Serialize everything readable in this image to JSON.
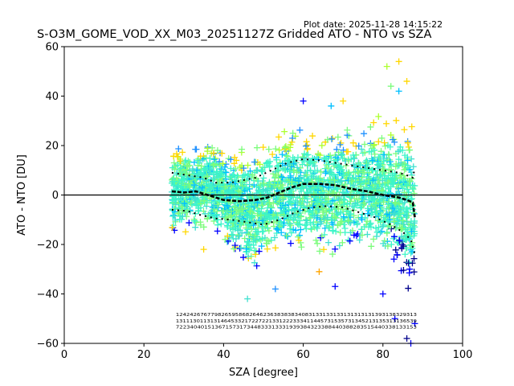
{
  "header": {
    "plot_date": "Plot date: 2025-11-28 14:15:22",
    "title": "S-O3M_GOME_VOD_XX_M03_20251127Z Gridded ATO - NTO vs SZA"
  },
  "colors": {
    "background": "#ffffff",
    "axis": "#000000",
    "scatter_palette": [
      "#00008b",
      "#0000ff",
      "#1e90ff",
      "#00bfff",
      "#40e0d0",
      "#3cf5c8",
      "#7cfc7c",
      "#adff2f",
      "#ffd700",
      "#ffa500"
    ]
  },
  "chart_data": {
    "type": "scatter",
    "title": "S-O3M_GOME_VOD_XX_M03_20251127Z Gridded ATO - NTO vs SZA",
    "xlabel": "SZA [degree]",
    "ylabel": "ATO - NTO [DU]",
    "xlim": [
      0,
      100
    ],
    "ylim": [
      -60,
      60
    ],
    "xticks": [
      0,
      20,
      40,
      60,
      80,
      100
    ],
    "yticks": [
      -60,
      -40,
      -20,
      0,
      20,
      40,
      60
    ],
    "grid": false,
    "marker": "+",
    "x_range": [
      27,
      88
    ],
    "zero_line": 0,
    "cloud_upper": [
      {
        "x": 27,
        "y": 22
      },
      {
        "x": 32,
        "y": 24
      },
      {
        "x": 36,
        "y": 26
      },
      {
        "x": 40,
        "y": 22
      },
      {
        "x": 44,
        "y": 20
      },
      {
        "x": 48,
        "y": 24
      },
      {
        "x": 52,
        "y": 28
      },
      {
        "x": 56,
        "y": 30
      },
      {
        "x": 60,
        "y": 30
      },
      {
        "x": 64,
        "y": 28
      },
      {
        "x": 68,
        "y": 30
      },
      {
        "x": 72,
        "y": 30
      },
      {
        "x": 76,
        "y": 32
      },
      {
        "x": 80,
        "y": 34
      },
      {
        "x": 84,
        "y": 36
      },
      {
        "x": 87,
        "y": 38
      },
      {
        "x": 88,
        "y": 30
      }
    ],
    "cloud_lower": [
      {
        "x": 27,
        "y": -20
      },
      {
        "x": 32,
        "y": -18
      },
      {
        "x": 36,
        "y": -20
      },
      {
        "x": 40,
        "y": -22
      },
      {
        "x": 44,
        "y": -30
      },
      {
        "x": 46,
        "y": -36
      },
      {
        "x": 50,
        "y": -32
      },
      {
        "x": 54,
        "y": -28
      },
      {
        "x": 58,
        "y": -28
      },
      {
        "x": 62,
        "y": -26
      },
      {
        "x": 66,
        "y": -28
      },
      {
        "x": 70,
        "y": -28
      },
      {
        "x": 74,
        "y": -24
      },
      {
        "x": 78,
        "y": -26
      },
      {
        "x": 82,
        "y": -32
      },
      {
        "x": 85,
        "y": -42
      },
      {
        "x": 87,
        "y": -55
      },
      {
        "x": 88,
        "y": -45
      }
    ],
    "outliers": [
      {
        "x": 60,
        "y": 38,
        "c": "#0000ff"
      },
      {
        "x": 70,
        "y": 38,
        "c": "#ffd700"
      },
      {
        "x": 81,
        "y": 52,
        "c": "#adff2f"
      },
      {
        "x": 84,
        "y": 54,
        "c": "#ffd700"
      },
      {
        "x": 86,
        "y": 46,
        "c": "#ffd700"
      },
      {
        "x": 82,
        "y": 44,
        "c": "#7cfc7c"
      },
      {
        "x": 84,
        "y": 42,
        "c": "#00bfff"
      },
      {
        "x": 67,
        "y": 36,
        "c": "#00bfff"
      },
      {
        "x": 46,
        "y": -42,
        "c": "#40e0d0"
      },
      {
        "x": 53,
        "y": -38,
        "c": "#1e90ff"
      },
      {
        "x": 68,
        "y": -37,
        "c": "#0000ff"
      },
      {
        "x": 83,
        "y": -50,
        "c": "#0000ff"
      },
      {
        "x": 86,
        "y": -58,
        "c": "#00008b"
      },
      {
        "x": 87,
        "y": -60,
        "c": "#0000ff"
      },
      {
        "x": 88,
        "y": -52,
        "c": "#0000ff"
      },
      {
        "x": 80,
        "y": -40,
        "c": "#0000ff"
      },
      {
        "x": 64,
        "y": -31,
        "c": "#ffa500"
      },
      {
        "x": 35,
        "y": -22,
        "c": "#ffd700"
      }
    ],
    "mean_line": [
      {
        "x": 27,
        "y": 1.5
      },
      {
        "x": 30,
        "y": 1
      },
      {
        "x": 33,
        "y": 1.5
      },
      {
        "x": 36,
        "y": 0
      },
      {
        "x": 40,
        "y": -2
      },
      {
        "x": 44,
        "y": -2.5
      },
      {
        "x": 48,
        "y": -2
      },
      {
        "x": 51,
        "y": -1
      },
      {
        "x": 54,
        "y": 1
      },
      {
        "x": 57,
        "y": 3
      },
      {
        "x": 60,
        "y": 4.5
      },
      {
        "x": 64,
        "y": 4.5
      },
      {
        "x": 68,
        "y": 4
      },
      {
        "x": 72,
        "y": 2.5
      },
      {
        "x": 76,
        "y": 1.5
      },
      {
        "x": 80,
        "y": 0
      },
      {
        "x": 84,
        "y": -1
      },
      {
        "x": 86,
        "y": -2
      },
      {
        "x": 87.5,
        "y": -3
      },
      {
        "x": 88,
        "y": -9
      }
    ],
    "upper_sigma_line": [
      {
        "x": 27,
        "y": 9
      },
      {
        "x": 31,
        "y": 8
      },
      {
        "x": 35,
        "y": 7
      },
      {
        "x": 38,
        "y": 5
      },
      {
        "x": 42,
        "y": 5
      },
      {
        "x": 45,
        "y": 6
      },
      {
        "x": 48,
        "y": 7
      },
      {
        "x": 52,
        "y": 10
      },
      {
        "x": 56,
        "y": 13
      },
      {
        "x": 60,
        "y": 14.5
      },
      {
        "x": 64,
        "y": 14
      },
      {
        "x": 68,
        "y": 13
      },
      {
        "x": 72,
        "y": 12
      },
      {
        "x": 76,
        "y": 11
      },
      {
        "x": 80,
        "y": 10
      },
      {
        "x": 84,
        "y": 9
      },
      {
        "x": 86,
        "y": 8
      },
      {
        "x": 87.5,
        "y": 7
      },
      {
        "x": 88,
        "y": 11
      }
    ],
    "lower_sigma_line": [
      {
        "x": 27,
        "y": -6
      },
      {
        "x": 31,
        "y": -6.5
      },
      {
        "x": 34,
        "y": -8
      },
      {
        "x": 38,
        "y": -9.5
      },
      {
        "x": 42,
        "y": -10
      },
      {
        "x": 46,
        "y": -11
      },
      {
        "x": 50,
        "y": -12
      },
      {
        "x": 54,
        "y": -10
      },
      {
        "x": 58,
        "y": -7
      },
      {
        "x": 62,
        "y": -5
      },
      {
        "x": 66,
        "y": -4.5
      },
      {
        "x": 70,
        "y": -5
      },
      {
        "x": 74,
        "y": -7
      },
      {
        "x": 78,
        "y": -9
      },
      {
        "x": 82,
        "y": -12
      },
      {
        "x": 85,
        "y": -15
      },
      {
        "x": 87,
        "y": -18
      },
      {
        "x": 88,
        "y": -24
      }
    ],
    "count_text_rows": [
      {
        "y": -49,
        "text": "124242676779826595868264623638383834083133133133131313131393138329313"
      },
      {
        "y": -51.5,
        "text": "1311130113131464533217227221331222333411445731535731345213135313136539"
      },
      {
        "y": -54,
        "text": "72234040151367157317344833313331939384323388440388283515440338133153"
      }
    ],
    "count_text_x_range": [
      28,
      88.5
    ]
  }
}
